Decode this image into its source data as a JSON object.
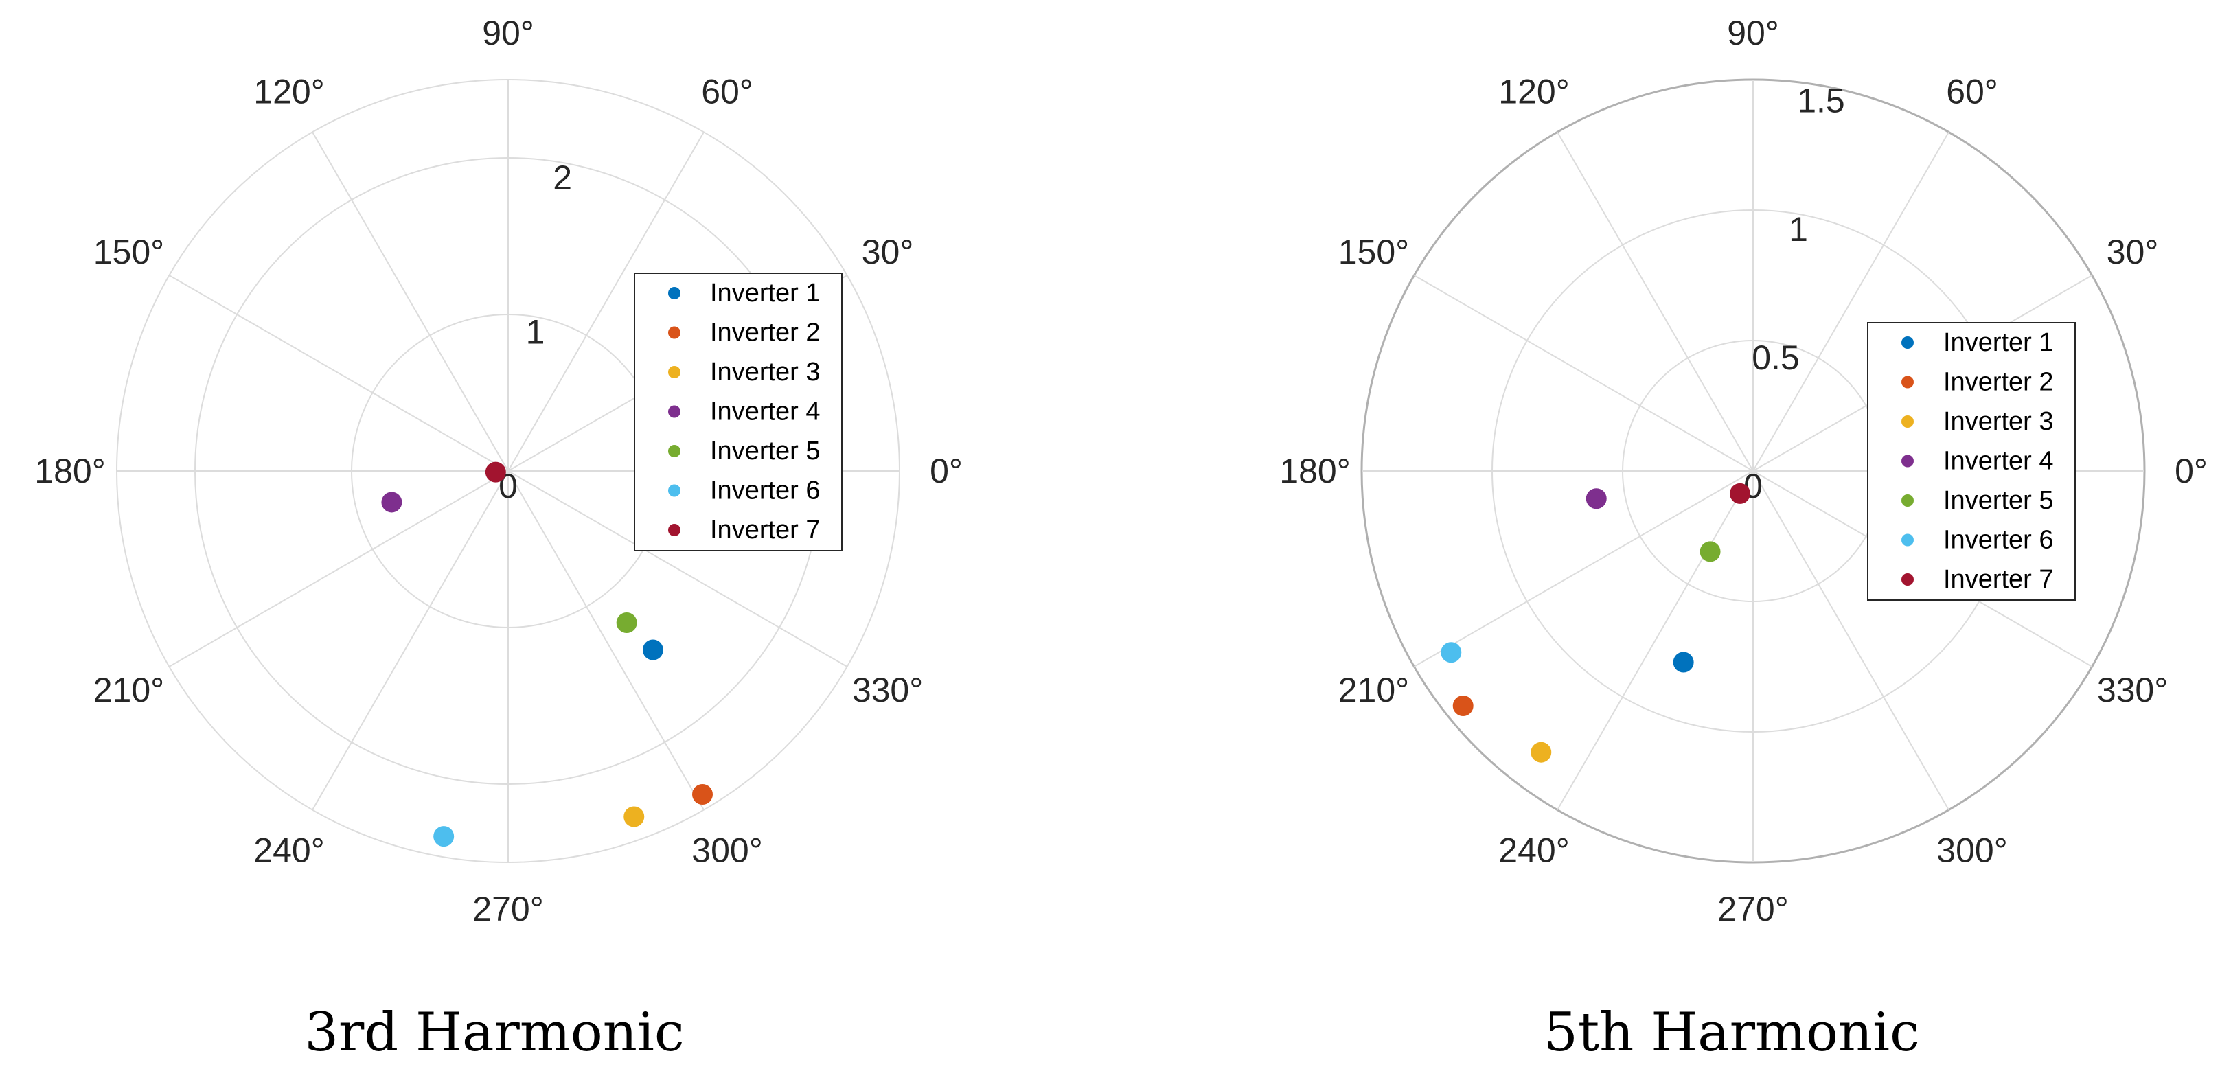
{
  "chart_data": [
    {
      "type": "scatter",
      "coordinate_system": "polar",
      "title": "3rd Harmonic",
      "r_range": [
        0,
        2.5
      ],
      "r_ticks": [
        0,
        1,
        2
      ],
      "theta_ticks_deg": [
        0,
        30,
        60,
        90,
        120,
        150,
        180,
        210,
        240,
        270,
        300,
        330
      ],
      "theta_tick_labels": [
        "0°",
        "30°",
        "60°",
        "90°",
        "120°",
        "150°",
        "180°",
        "210°",
        "240°",
        "270°",
        "300°",
        "330°"
      ],
      "grid": true,
      "legend_placement": "right",
      "series": [
        {
          "name": "Inverter 1",
          "color": "#0072BD",
          "r": 1.47,
          "theta_deg": 309
        },
        {
          "name": "Inverter 2",
          "color": "#D95319",
          "r": 2.41,
          "theta_deg": 301
        },
        {
          "name": "Inverter 3",
          "color": "#EDB120",
          "r": 2.35,
          "theta_deg": 290
        },
        {
          "name": "Inverter 4",
          "color": "#7E2F8E",
          "r": 0.77,
          "theta_deg": 195
        },
        {
          "name": "Inverter 5",
          "color": "#77AC30",
          "r": 1.23,
          "theta_deg": 308
        },
        {
          "name": "Inverter 6",
          "color": "#4DBEEE",
          "r": 2.37,
          "theta_deg": 260
        },
        {
          "name": "Inverter 7",
          "color": "#A2142F",
          "r": 0.08,
          "theta_deg": 185
        }
      ]
    },
    {
      "type": "scatter",
      "coordinate_system": "polar",
      "title": "5th Harmonic",
      "r_range": [
        0,
        1.5
      ],
      "r_ticks": [
        0,
        0.5,
        1,
        1.5
      ],
      "theta_ticks_deg": [
        0,
        30,
        60,
        90,
        120,
        150,
        180,
        210,
        240,
        270,
        300,
        330
      ],
      "theta_tick_labels": [
        "0°",
        "30°",
        "60°",
        "90°",
        "120°",
        "150°",
        "180°",
        "210°",
        "240°",
        "270°",
        "300°",
        "330°"
      ],
      "grid": true,
      "legend_placement": "right",
      "series": [
        {
          "name": "Inverter 1",
          "color": "#0072BD",
          "r": 0.78,
          "theta_deg": 250
        },
        {
          "name": "Inverter 2",
          "color": "#D95319",
          "r": 1.43,
          "theta_deg": 219
        },
        {
          "name": "Inverter 3",
          "color": "#EDB120",
          "r": 1.35,
          "theta_deg": 233
        },
        {
          "name": "Inverter 4",
          "color": "#7E2F8E",
          "r": 0.61,
          "theta_deg": 190
        },
        {
          "name": "Inverter 5",
          "color": "#77AC30",
          "r": 0.35,
          "theta_deg": 242
        },
        {
          "name": "Inverter 6",
          "color": "#4DBEEE",
          "r": 1.35,
          "theta_deg": 211
        },
        {
          "name": "Inverter 7",
          "color": "#A2142F",
          "r": 0.1,
          "theta_deg": 240
        }
      ]
    }
  ]
}
